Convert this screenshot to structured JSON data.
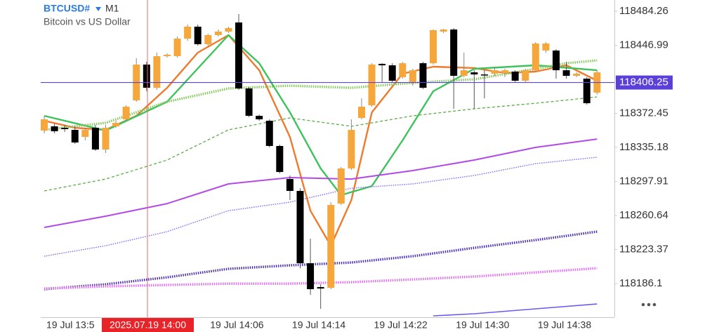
{
  "chart_data": {
    "type": "candlestick",
    "symbol": "BTCUSD#",
    "timeframe": "M1",
    "description": "Bitcoin vs US Dollar",
    "crosshair_label": "2025.07.19 14:00",
    "current_price": 118406.25,
    "ylim": [
      118150.8,
      118496.6
    ],
    "yticks": [
      118484.26,
      118446.99,
      118372.45,
      118335.18,
      118297.91,
      118260.64,
      118223.37,
      118186.1
    ],
    "grid": false,
    "up_color": "#f5a73c",
    "down_color": "#000000",
    "categories": [
      "19 Jul 13:5",
      null,
      null,
      null,
      null,
      null,
      null,
      null,
      null,
      null,
      null,
      null,
      null,
      null,
      null,
      null,
      "19 Jul 14:06",
      null,
      null,
      null,
      null,
      null,
      null,
      null,
      "19 Jul 14:14",
      null,
      null,
      null,
      null,
      null,
      null,
      null,
      "19 Jul 14:22",
      null,
      null,
      null,
      null,
      null,
      null,
      null,
      "19 Jul 14:30",
      null,
      null,
      null,
      null,
      null,
      null,
      null,
      "19 Jul 14:38",
      null,
      null,
      null,
      null,
      null,
      null
    ],
    "open": [
      118353.7,
      118358.3,
      118356.7,
      118354.4,
      118346.7,
      118356.7,
      118332.9,
      118358.3,
      118366.0,
      118386.7,
      118425.9,
      118400.5,
      118435.1,
      118435.1,
      118454.3,
      118467.4,
      118448.2,
      118458.2,
      118462.0,
      118472.0,
      118399.8,
      118369.8,
      118364.4,
      118336.8,
      118300.6,
      118287.6,
      118208.4,
      118182.3,
      118181.5,
      118273.7,
      118312.2,
      118367.5,
      118381.3,
      118426.7,
      118425.1,
      118412.1,
      118405.9,
      118427.4,
      118427.4,
      118462.0,
      118464.3,
      118413.6,
      118417.4,
      118415.1,
      118415.9,
      118416.7,
      118418.2,
      118408.2,
      118419.7,
      118441.3,
      118441.3,
      118419.7,
      118413.6,
      118410.5,
      118395.2
    ],
    "high": [
      118369.8,
      118361.3,
      118359.8,
      118358.3,
      118356.7,
      118359.8,
      118359.8,
      118364.4,
      118381.3,
      118432.8,
      118429.0,
      118439.0,
      118438.2,
      118456.6,
      118469.7,
      118469.7,
      118459.7,
      118464.3,
      118467.4,
      118481.2,
      118401.3,
      118371.3,
      118366.0,
      118338.3,
      118304.5,
      118290.6,
      118235.3,
      118185.4,
      118275.3,
      118313.7,
      118366.0,
      118389.0,
      118427.4,
      118427.4,
      118427.4,
      118429.0,
      118421.3,
      118429.0,
      118464.3,
      118465.1,
      118465.9,
      118439.0,
      118419.7,
      118419.7,
      118423.6,
      118421.3,
      118419.7,
      118421.3,
      118450.5,
      118450.5,
      118442.8,
      118429.0,
      118417.4,
      118412.1,
      118419.7
    ],
    "low": [
      118350.6,
      118350.6,
      118352.1,
      118339.1,
      118342.9,
      118331.4,
      118329.1,
      118356.7,
      118364.4,
      118385.2,
      118396.7,
      118398.2,
      118433.6,
      118433.6,
      118452.0,
      118446.6,
      118445.9,
      118456.6,
      118460.5,
      118398.2,
      118368.3,
      118364.4,
      118335.2,
      118306.8,
      118277.6,
      118203.0,
      118173.8,
      118158.5,
      118180.0,
      118272.2,
      118310.6,
      118366.0,
      118379.8,
      118405.9,
      118405.9,
      118410.5,
      118402.8,
      118399.0,
      118425.9,
      118460.5,
      118377.5,
      118412.1,
      118377.5,
      118389.0,
      118413.6,
      118412.1,
      118405.9,
      118405.9,
      118418.2,
      118439.0,
      118410.5,
      118410.5,
      118412.1,
      118382.1,
      118392.9
    ],
    "close": [
      118366.0,
      118352.9,
      118355.2,
      118340.6,
      118354.4,
      118332.9,
      118356.7,
      118362.1,
      118379.8,
      118425.9,
      118400.5,
      118435.1,
      118436.7,
      118454.3,
      118467.4,
      118448.2,
      118458.2,
      118462.0,
      118465.9,
      118399.8,
      118369.8,
      118366.0,
      118336.8,
      118308.3,
      118287.6,
      118208.4,
      118180.0,
      118180.7,
      118272.2,
      118312.2,
      118354.4,
      118379.8,
      118425.9,
      118425.1,
      118408.2,
      118427.4,
      118419.7,
      118400.5,
      118463.6,
      118464.3,
      118413.6,
      118419.7,
      118415.1,
      118414.4,
      118419.7,
      118419.7,
      118408.2,
      118419.7,
      118449.0,
      118449.0,
      118419.7,
      118413.6,
      118415.9,
      118383.6,
      118417.4
    ],
    "overlays": [
      {
        "color": "#ef7a2e",
        "style": "solid",
        "width": 2.4,
        "x": [
          0,
          3,
          6,
          9,
          12,
          15,
          18,
          21,
          24,
          26,
          28,
          30,
          32,
          35,
          38,
          42,
          45,
          48,
          51,
          54
        ],
        "values": [
          118364.4,
          118356.7,
          118354.4,
          118369.8,
          118400.5,
          118439.0,
          118458.2,
          118419.7,
          118346.7,
          118265.9,
          118227.6,
          118277.6,
          118373.6,
          118415.9,
          118423.6,
          118422.1,
          118416.7,
          118418.2,
          118425.1,
          118408.2
        ]
      },
      {
        "color": "#3ec35c",
        "style": "solid",
        "width": 2.4,
        "x": [
          0,
          6,
          12,
          18,
          21,
          24,
          27,
          29,
          32,
          35,
          38,
          42,
          48,
          54
        ],
        "values": [
          118369.8,
          118353.7,
          118385.2,
          118458.2,
          118427.4,
          118373.6,
          118312.2,
          118283.0,
          118292.9,
          118342.9,
          118396.7,
          118421.3,
          118425.1,
          118419.7
        ]
      },
      {
        "color": "#86c95c",
        "style": "dotted",
        "width": 3.5,
        "x": [
          0,
          6,
          12,
          18,
          24,
          30,
          36,
          42,
          48,
          51,
          54
        ],
        "values": [
          118354.4,
          118362.1,
          118385.2,
          118399.8,
          118402.8,
          118400.5,
          118405.9,
          118409.8,
          118421.3,
          118427.4,
          118430.5
        ]
      },
      {
        "color": "#5bab48",
        "style": "dashed",
        "width": 1.3,
        "x": [
          0,
          6,
          12,
          18,
          24,
          30,
          36,
          42,
          48,
          54
        ],
        "values": [
          118287.6,
          118300.6,
          118321.4,
          118354.4,
          118367.5,
          118358.3,
          118369.8,
          118377.5,
          118383.6,
          118390.5
        ]
      },
      {
        "color": "#b24ae6",
        "style": "solid",
        "width": 2,
        "x": [
          0,
          6,
          12,
          18,
          24,
          30,
          36,
          42,
          48,
          54
        ],
        "values": [
          118247.6,
          118259.9,
          118273.7,
          118295.3,
          118302.2,
          118300.6,
          118309.9,
          118321.4,
          118335.2,
          118344.4
        ]
      },
      {
        "color": "#8a72f2",
        "style": "dotted",
        "width": 1.5,
        "x": [
          0,
          6,
          12,
          18,
          24,
          30,
          36,
          42,
          48,
          54
        ],
        "values": [
          118216.1,
          118227.6,
          118243.0,
          118265.9,
          118275.3,
          118290.6,
          118295.3,
          118304.5,
          118317.5,
          118324.5
        ]
      },
      {
        "color": "#4a2fb2",
        "style": "dotted",
        "width": 3.5,
        "x": [
          0,
          6,
          12,
          18,
          24,
          30,
          36,
          42,
          48,
          54
        ],
        "values": [
          118180.0,
          118185.4,
          118193.0,
          118202.3,
          118206.1,
          118209.2,
          118216.1,
          118225.3,
          118233.8,
          118243.0
        ]
      },
      {
        "color": "#e06cf2",
        "style": "dotted",
        "width": 3.5,
        "x": [
          0,
          6,
          12,
          18,
          24,
          30,
          36,
          42,
          48,
          54
        ],
        "values": [
          118180.7,
          118183.1,
          118184.6,
          118186.1,
          118186.1,
          118187.7,
          118190.7,
          118193.8,
          118198.4,
          118203.0
        ]
      },
      {
        "color": "#6a5cf0",
        "style": "solid",
        "width": 1.6,
        "x": [
          38,
          42,
          48,
          54
        ],
        "values": [
          118150.8,
          118153.1,
          118158.5,
          118163.8
        ]
      }
    ]
  }
}
